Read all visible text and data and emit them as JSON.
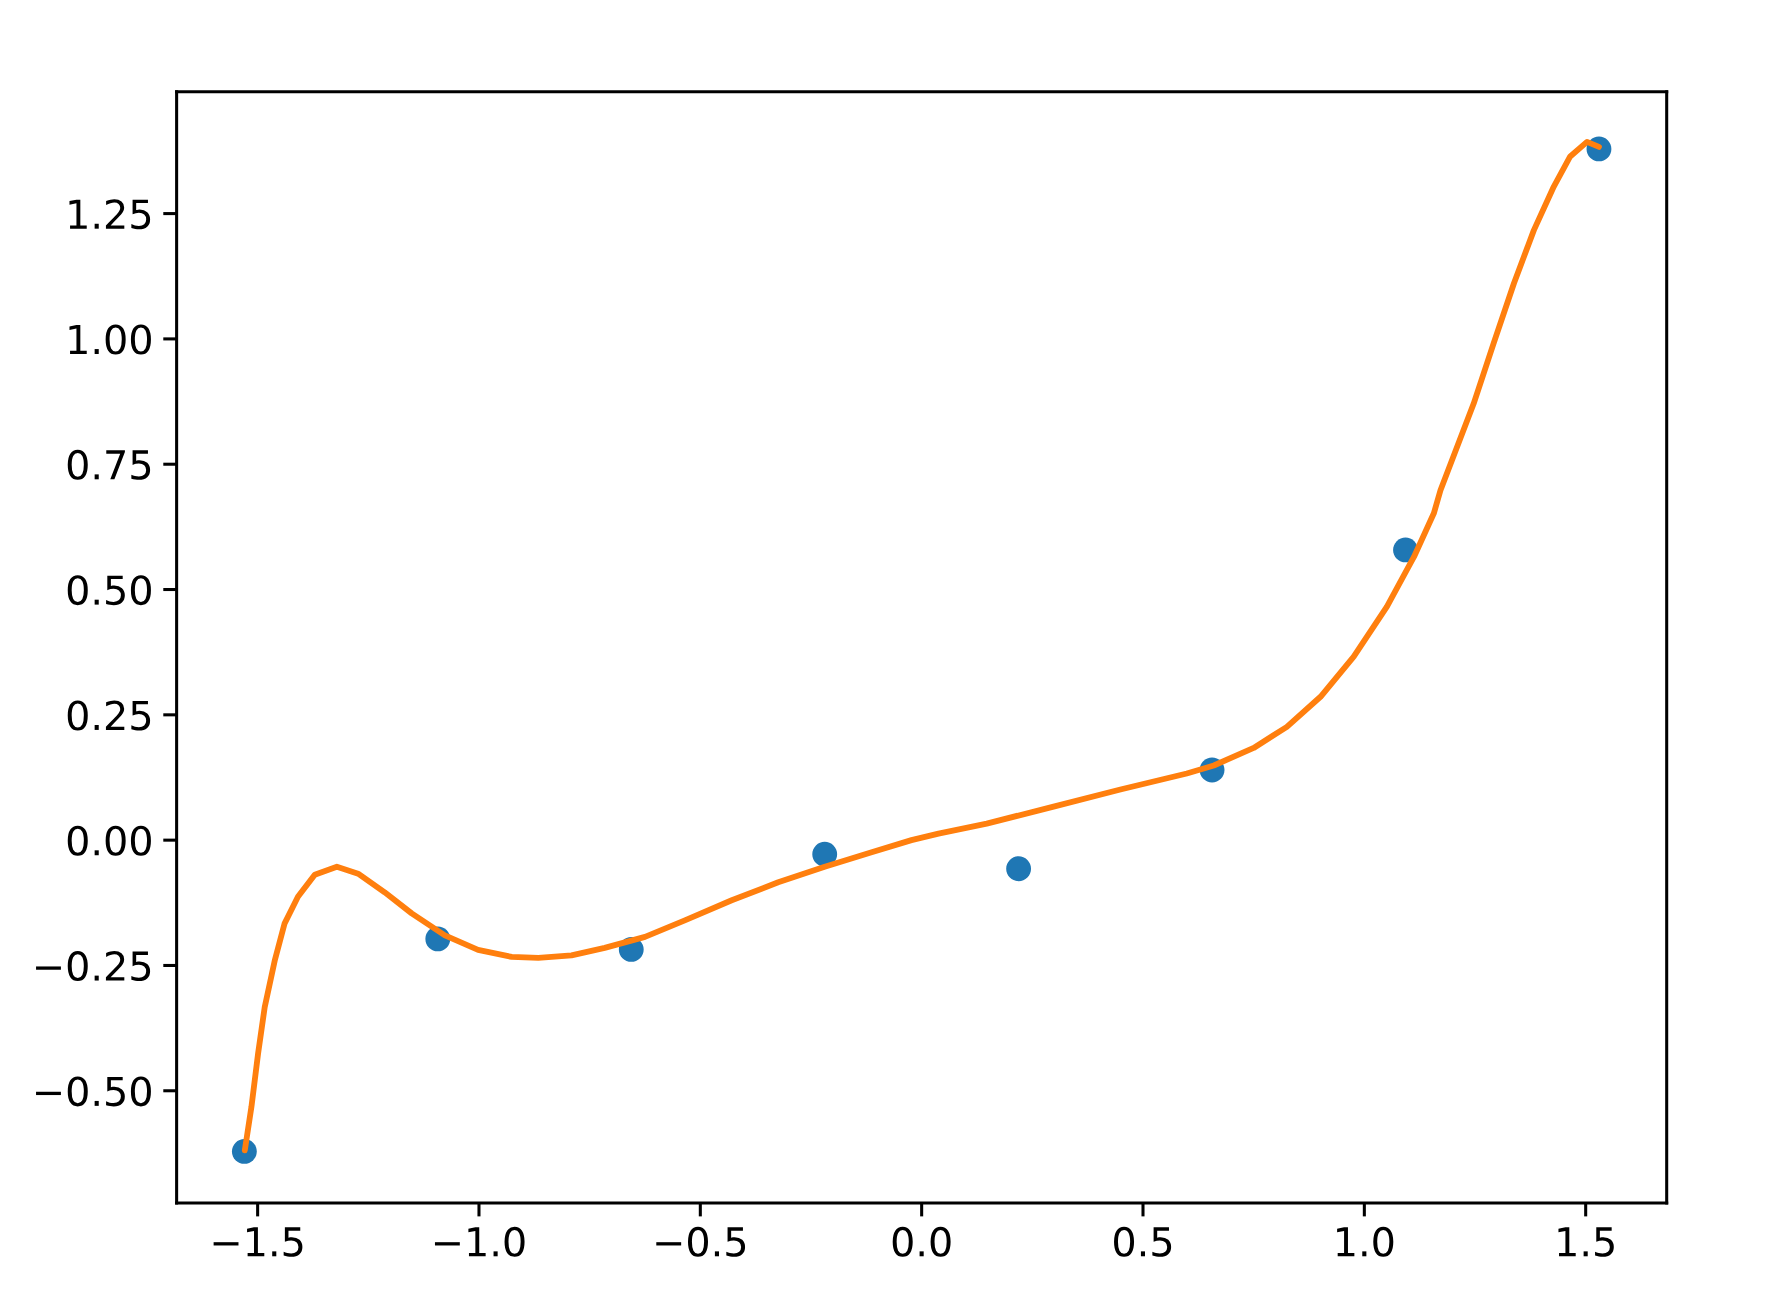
{
  "chart_data": {
    "type": "scatter",
    "xlim": [
      -1.683,
      1.683
    ],
    "ylim": [
      -0.724,
      1.493
    ],
    "xticks": [
      {
        "value": -1.5,
        "label": "−1.5"
      },
      {
        "value": -1.0,
        "label": "−1.0"
      },
      {
        "value": -0.5,
        "label": "−0.5"
      },
      {
        "value": 0.0,
        "label": "0.0"
      },
      {
        "value": 0.5,
        "label": "0.5"
      },
      {
        "value": 1.0,
        "label": "1.0"
      },
      {
        "value": 1.5,
        "label": "1.5"
      }
    ],
    "yticks": [
      {
        "value": -0.5,
        "label": "−0.50"
      },
      {
        "value": -0.25,
        "label": "−0.25"
      },
      {
        "value": 0.0,
        "label": "0.00"
      },
      {
        "value": 0.25,
        "label": "0.25"
      },
      {
        "value": 0.5,
        "label": "0.50"
      },
      {
        "value": 0.75,
        "label": "0.75"
      },
      {
        "value": 1.0,
        "label": "1.00"
      },
      {
        "value": 1.25,
        "label": "1.25"
      }
    ],
    "grid": false,
    "series": [
      {
        "color": "#1f77b4",
        "marker": "circle",
        "x": [
          -1.53,
          -1.093,
          -0.656,
          -0.219,
          0.219,
          0.656,
          1.093,
          1.53
        ],
        "values": [
          -0.621,
          -0.197,
          -0.218,
          -0.028,
          -0.057,
          0.14,
          0.579,
          1.379
        ]
      },
      {
        "type": "line",
        "color": "#ff7f0e",
        "line_style": "solid",
        "marker": "none",
        "x": [
          -1.529,
          -1.514,
          -1.499,
          -1.484,
          -1.461,
          -1.439,
          -1.409,
          -1.371,
          -1.321,
          -1.273,
          -1.213,
          -1.152,
          -1.077,
          -1.002,
          -0.926,
          -0.866,
          -0.791,
          -0.716,
          -0.625,
          -0.535,
          -0.429,
          -0.324,
          -0.219,
          -0.113,
          -0.023,
          0.038,
          0.147,
          0.298,
          0.449,
          0.599,
          0.66,
          0.75,
          0.825,
          0.901,
          0.976,
          1.051,
          1.096,
          1.112,
          1.157,
          1.172,
          1.247,
          1.292,
          1.338,
          1.383,
          1.428,
          1.465,
          1.503,
          1.53
        ],
        "values": [
          -0.619,
          -0.532,
          -0.426,
          -0.333,
          -0.239,
          -0.166,
          -0.113,
          -0.069,
          -0.053,
          -0.067,
          -0.104,
          -0.146,
          -0.19,
          -0.219,
          -0.233,
          -0.235,
          -0.23,
          -0.215,
          -0.193,
          -0.16,
          -0.12,
          -0.084,
          -0.053,
          -0.024,
          0.0,
          0.013,
          0.033,
          0.067,
          0.101,
          0.133,
          0.149,
          0.184,
          0.226,
          0.286,
          0.366,
          0.466,
          0.539,
          0.565,
          0.652,
          0.698,
          0.871,
          0.991,
          1.111,
          1.217,
          1.304,
          1.364,
          1.393,
          1.383
        ]
      }
    ]
  }
}
